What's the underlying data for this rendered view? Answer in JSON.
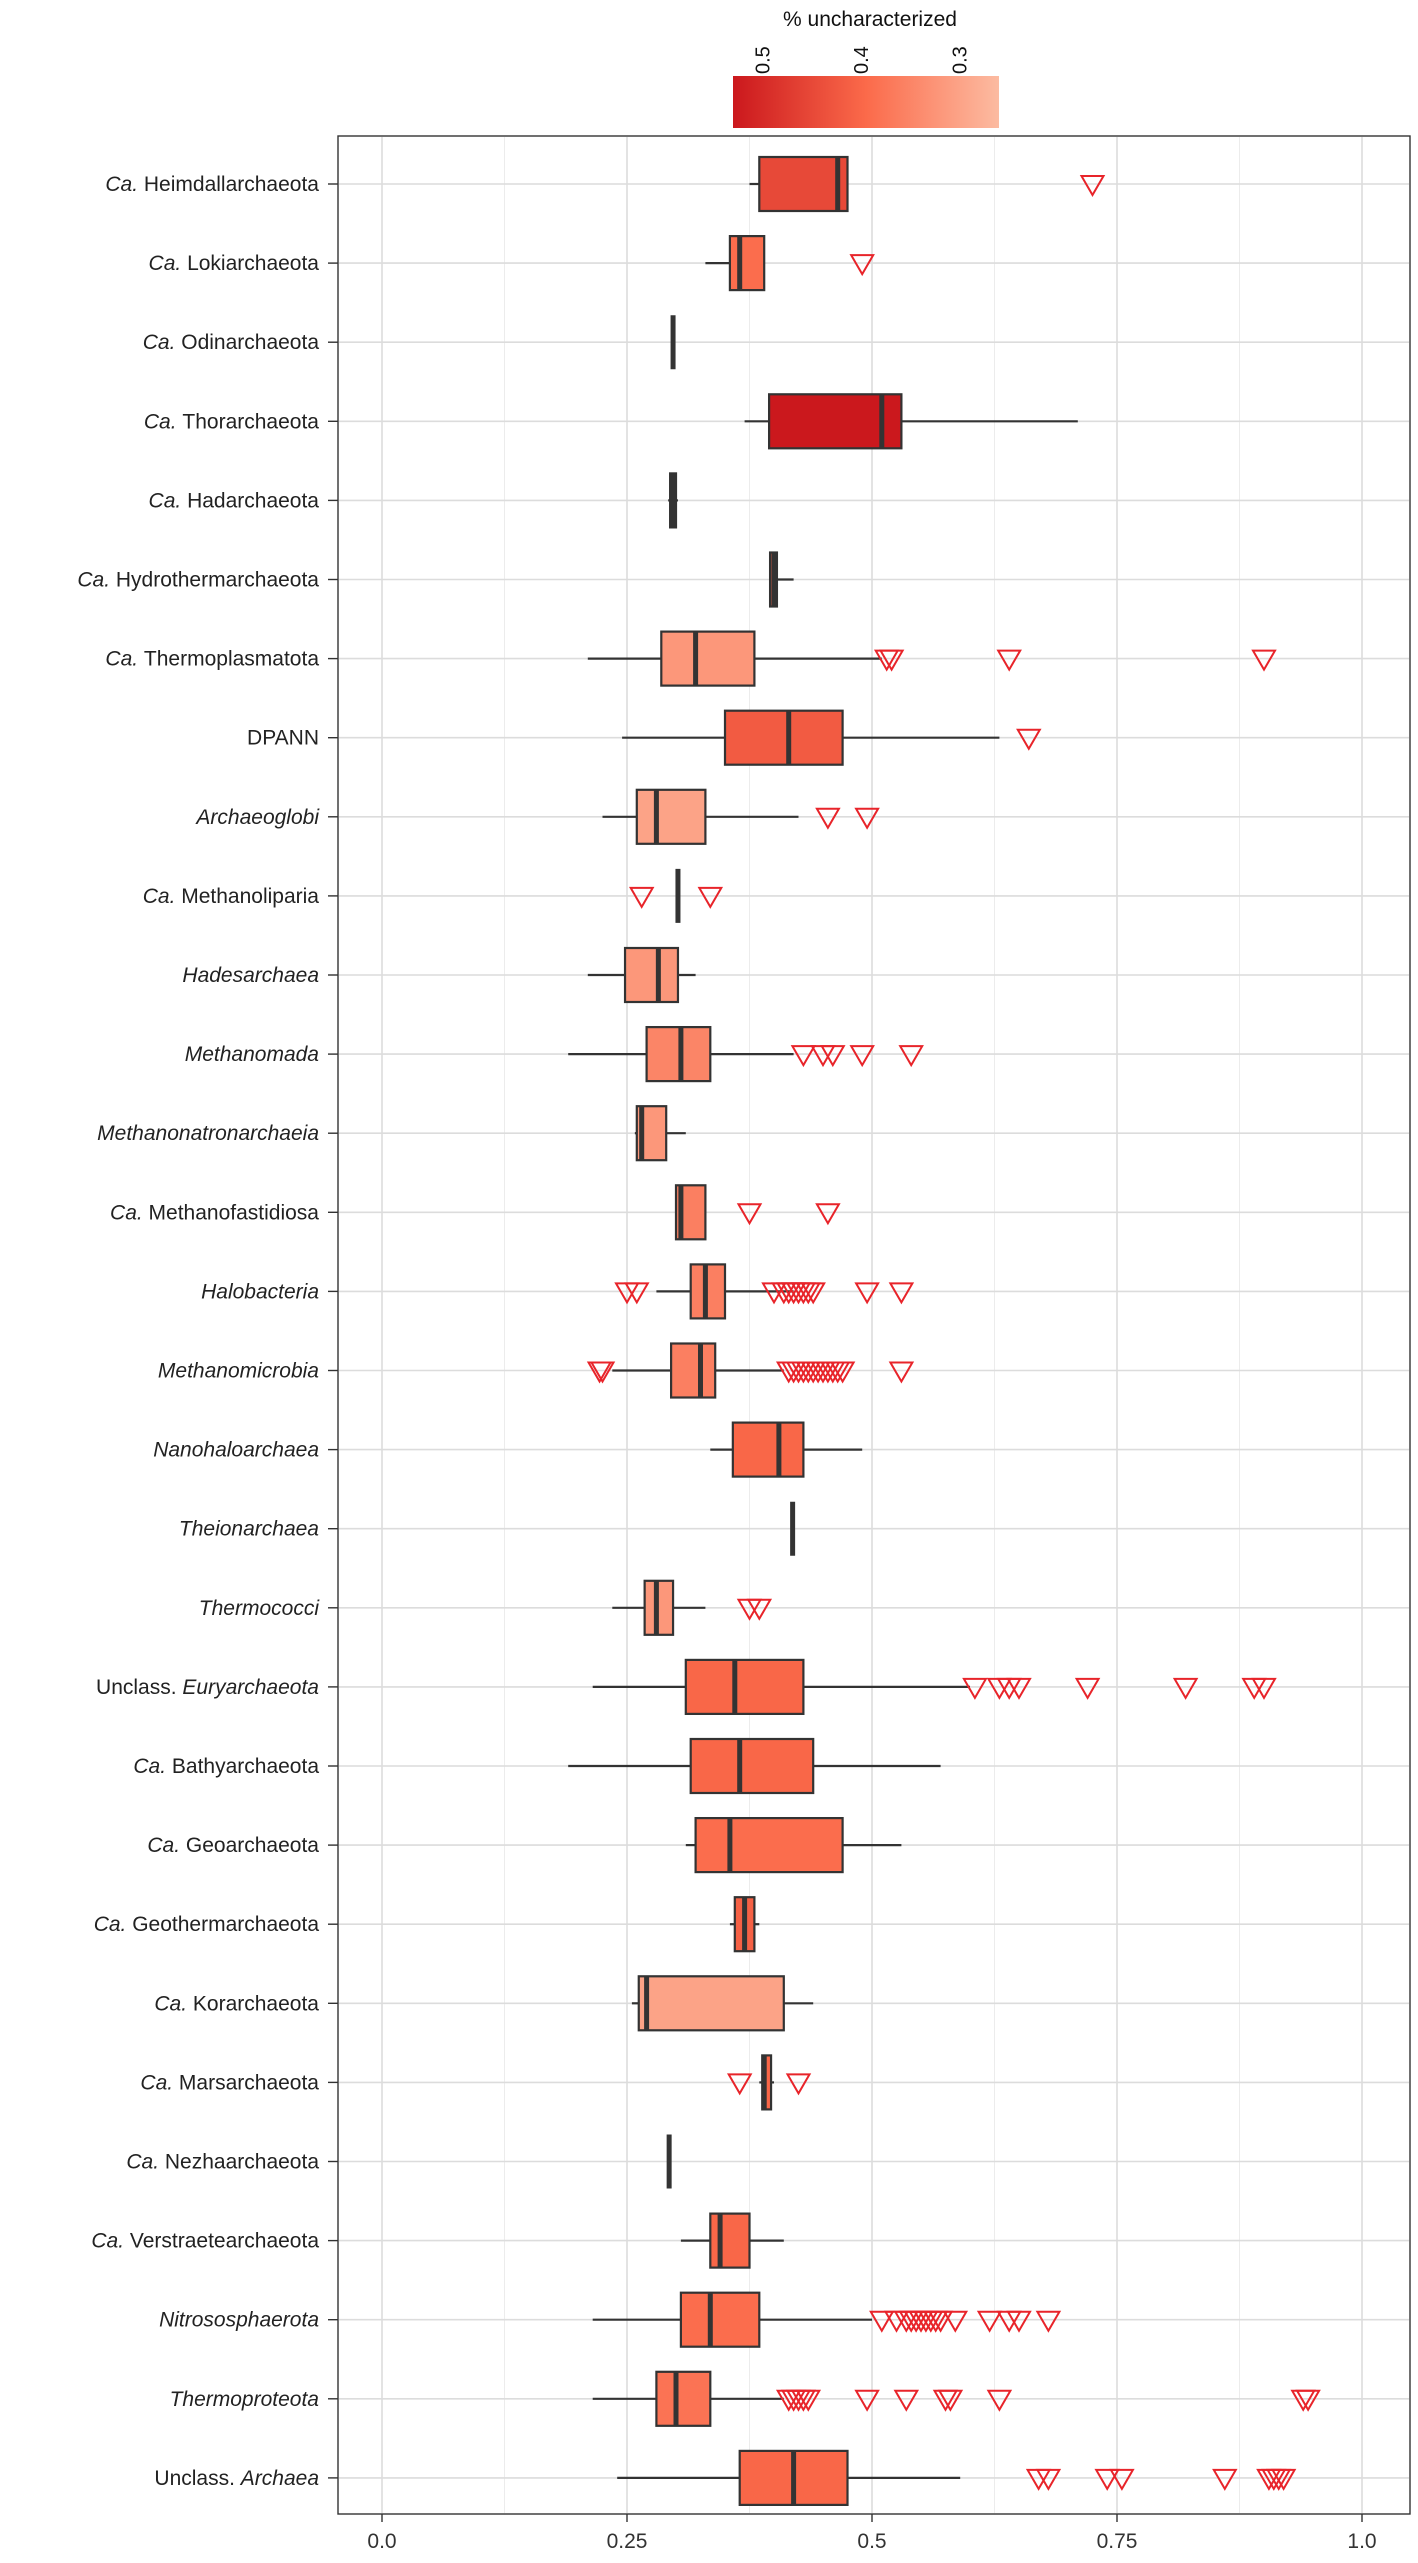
{
  "chart_data": {
    "type": "boxplot",
    "orientation": "horizontal",
    "xlim": [
      0.0,
      1.0
    ],
    "x_ticks": [
      "0.0",
      "0.25",
      "0.5",
      "0.75",
      "1.0"
    ],
    "x_tick_values": [
      0.0,
      0.25,
      0.5,
      0.75,
      1.0
    ],
    "grid": true,
    "legend": {
      "title": "% uncharacterized",
      "position": "top",
      "ticks": [
        "0.5",
        "0.4",
        "0.3"
      ],
      "tick_values": [
        0.5,
        0.4,
        0.3
      ],
      "range": [
        0.53,
        0.26
      ],
      "color_high": "#cb181d",
      "color_low": "#fcbba1"
    },
    "outlier_color": "#e8242a",
    "box_outline_color": "#333333",
    "groups": [
      {
        "prefix": "Ca.",
        "name": "Heimdallarchaeota",
        "italic_name": false,
        "min": 0.375,
        "q1": 0.385,
        "median": 0.465,
        "q3": 0.475,
        "max": 0.475,
        "fill_value": 0.45,
        "outliers": [
          0.725
        ]
      },
      {
        "prefix": "Ca.",
        "name": "Lokiarchaeota",
        "italic_name": false,
        "min": 0.33,
        "q1": 0.355,
        "median": 0.365,
        "q3": 0.39,
        "max": 0.39,
        "fill_value": 0.39,
        "outliers": [
          0.49
        ]
      },
      {
        "prefix": "Ca.",
        "name": "Odinarchaeota",
        "italic_name": false,
        "min": 0.297,
        "q1": 0.297,
        "median": 0.297,
        "q3": 0.297,
        "max": 0.297,
        "fill_value": 0.3,
        "outliers": []
      },
      {
        "prefix": "Ca.",
        "name": "Thorarchaeota",
        "italic_name": false,
        "min": 0.37,
        "q1": 0.395,
        "median": 0.51,
        "q3": 0.53,
        "max": 0.71,
        "fill_value": 0.53,
        "outliers": []
      },
      {
        "prefix": "Ca.",
        "name": "Hadarchaeota",
        "italic_name": false,
        "min": 0.292,
        "q1": 0.294,
        "median": 0.297,
        "q3": 0.3,
        "max": 0.302,
        "fill_value": 0.3,
        "outliers": []
      },
      {
        "prefix": "Ca.",
        "name": "Hydrothermarchaeota",
        "italic_name": false,
        "min": 0.395,
        "q1": 0.396,
        "median": 0.4,
        "q3": 0.403,
        "max": 0.42,
        "fill_value": 0.4,
        "outliers": []
      },
      {
        "prefix": "Ca.",
        "name": "Thermoplasmatota",
        "italic_name": false,
        "min": 0.21,
        "q1": 0.285,
        "median": 0.32,
        "q3": 0.38,
        "max": 0.51,
        "fill_value": 0.32,
        "outliers": [
          0.515,
          0.52,
          0.64,
          0.9
        ]
      },
      {
        "prefix": "",
        "name": "DPANN",
        "italic_name": false,
        "min": 0.245,
        "q1": 0.35,
        "median": 0.415,
        "q3": 0.47,
        "max": 0.63,
        "fill_value": 0.42,
        "outliers": [
          0.66
        ]
      },
      {
        "prefix": "",
        "name": "Archaeoglobi",
        "italic_name": true,
        "min": 0.225,
        "q1": 0.26,
        "median": 0.28,
        "q3": 0.33,
        "max": 0.425,
        "fill_value": 0.3,
        "outliers": [
          0.455,
          0.495
        ]
      },
      {
        "prefix": "Ca.",
        "name": "Methanoliparia",
        "italic_name": false,
        "min": 0.302,
        "q1": 0.302,
        "median": 0.302,
        "q3": 0.302,
        "max": 0.302,
        "fill_value": 0.3,
        "outliers": [
          0.265,
          0.335
        ]
      },
      {
        "prefix": "",
        "name": "Hadesarchaea",
        "italic_name": true,
        "min": 0.21,
        "q1": 0.248,
        "median": 0.282,
        "q3": 0.302,
        "max": 0.32,
        "fill_value": 0.32,
        "outliers": []
      },
      {
        "prefix": "",
        "name": "Methanomada",
        "italic_name": true,
        "min": 0.19,
        "q1": 0.27,
        "median": 0.305,
        "q3": 0.335,
        "max": 0.42,
        "fill_value": 0.35,
        "outliers": [
          0.43,
          0.45,
          0.46,
          0.49,
          0.54
        ]
      },
      {
        "prefix": "",
        "name": "Methanonatronarchaeia",
        "italic_name": true,
        "min": 0.258,
        "q1": 0.26,
        "median": 0.265,
        "q3": 0.29,
        "max": 0.31,
        "fill_value": 0.32,
        "outliers": []
      },
      {
        "prefix": "Ca.",
        "name": "Methanofastidiosa",
        "italic_name": false,
        "min": 0.3,
        "q1": 0.3,
        "median": 0.305,
        "q3": 0.33,
        "max": 0.33,
        "fill_value": 0.36,
        "outliers": [
          0.375,
          0.455
        ]
      },
      {
        "prefix": "",
        "name": "Halobacteria",
        "italic_name": true,
        "min": 0.28,
        "q1": 0.315,
        "median": 0.33,
        "q3": 0.35,
        "max": 0.42,
        "fill_value": 0.36,
        "outliers": [
          0.25,
          0.26,
          0.4,
          0.41,
          0.415,
          0.42,
          0.425,
          0.43,
          0.435,
          0.44,
          0.495,
          0.53
        ]
      },
      {
        "prefix": "",
        "name": "Methanomicrobia",
        "italic_name": true,
        "min": 0.235,
        "q1": 0.295,
        "median": 0.325,
        "q3": 0.34,
        "max": 0.41,
        "fill_value": 0.36,
        "outliers": [
          0.222,
          0.225,
          0.415,
          0.42,
          0.425,
          0.43,
          0.435,
          0.44,
          0.445,
          0.45,
          0.455,
          0.46,
          0.465,
          0.47,
          0.53
        ]
      },
      {
        "prefix": "",
        "name": "Nanohaloarchaea",
        "italic_name": true,
        "min": 0.335,
        "q1": 0.358,
        "median": 0.405,
        "q3": 0.43,
        "max": 0.49,
        "fill_value": 0.4,
        "outliers": []
      },
      {
        "prefix": "",
        "name": "Theionarchaea",
        "italic_name": true,
        "min": 0.419,
        "q1": 0.419,
        "median": 0.419,
        "q3": 0.419,
        "max": 0.419,
        "fill_value": 0.42,
        "outliers": []
      },
      {
        "prefix": "",
        "name": "Thermococci",
        "italic_name": true,
        "min": 0.235,
        "q1": 0.268,
        "median": 0.28,
        "q3": 0.297,
        "max": 0.33,
        "fill_value": 0.32,
        "outliers": [
          0.375,
          0.385
        ]
      },
      {
        "prefix": "Unclass.",
        "name": "Euryarchaeota",
        "italic_name": true,
        "min": 0.215,
        "q1": 0.31,
        "median": 0.36,
        "q3": 0.43,
        "max": 0.6,
        "fill_value": 0.4,
        "outliers": [
          0.605,
          0.63,
          0.64,
          0.65,
          0.72,
          0.82,
          0.89,
          0.9
        ]
      },
      {
        "prefix": "Ca.",
        "name": "Bathyarchaeota",
        "italic_name": false,
        "min": 0.19,
        "q1": 0.315,
        "median": 0.365,
        "q3": 0.44,
        "max": 0.57,
        "fill_value": 0.4,
        "outliers": []
      },
      {
        "prefix": "Ca.",
        "name": "Geoarchaeota",
        "italic_name": false,
        "min": 0.31,
        "q1": 0.32,
        "median": 0.355,
        "q3": 0.47,
        "max": 0.53,
        "fill_value": 0.39,
        "outliers": []
      },
      {
        "prefix": "Ca.",
        "name": "Geothermarchaeota",
        "italic_name": false,
        "min": 0.355,
        "q1": 0.36,
        "median": 0.37,
        "q3": 0.38,
        "max": 0.385,
        "fill_value": 0.41,
        "outliers": []
      },
      {
        "prefix": "Ca.",
        "name": "Korarchaeota",
        "italic_name": false,
        "min": 0.255,
        "q1": 0.262,
        "median": 0.27,
        "q3": 0.41,
        "max": 0.44,
        "fill_value": 0.3,
        "outliers": []
      },
      {
        "prefix": "Ca.",
        "name": "Marsarchaeota",
        "italic_name": false,
        "min": 0.385,
        "q1": 0.388,
        "median": 0.39,
        "q3": 0.397,
        "max": 0.4,
        "fill_value": 0.4,
        "outliers": [
          0.365,
          0.425
        ]
      },
      {
        "prefix": "Ca.",
        "name": "Nezhaarchaeota",
        "italic_name": false,
        "min": 0.293,
        "q1": 0.293,
        "median": 0.293,
        "q3": 0.293,
        "max": 0.293,
        "fill_value": 0.3,
        "outliers": []
      },
      {
        "prefix": "Ca.",
        "name": "Verstraetearchaeota",
        "italic_name": false,
        "min": 0.305,
        "q1": 0.335,
        "median": 0.345,
        "q3": 0.375,
        "max": 0.41,
        "fill_value": 0.4,
        "outliers": []
      },
      {
        "prefix": "",
        "name": "Nitrososphaerota",
        "italic_name": true,
        "min": 0.215,
        "q1": 0.305,
        "median": 0.335,
        "q3": 0.385,
        "max": 0.5,
        "fill_value": 0.39,
        "outliers": [
          0.51,
          0.525,
          0.535,
          0.54,
          0.545,
          0.55,
          0.555,
          0.56,
          0.565,
          0.57,
          0.585,
          0.62,
          0.64,
          0.65,
          0.68
        ]
      },
      {
        "prefix": "",
        "name": "Thermoproteota",
        "italic_name": true,
        "min": 0.215,
        "q1": 0.28,
        "median": 0.3,
        "q3": 0.335,
        "max": 0.41,
        "fill_value": 0.38,
        "outliers": [
          0.415,
          0.42,
          0.425,
          0.43,
          0.435,
          0.495,
          0.535,
          0.575,
          0.58,
          0.63,
          0.94,
          0.945
        ]
      },
      {
        "prefix": "Unclass.",
        "name": "Archaea",
        "italic_name": true,
        "min": 0.24,
        "q1": 0.365,
        "median": 0.42,
        "q3": 0.475,
        "max": 0.59,
        "fill_value": 0.4,
        "outliers": [
          0.67,
          0.68,
          0.74,
          0.755,
          0.86,
          0.905,
          0.91,
          0.915,
          0.92
        ]
      }
    ]
  }
}
